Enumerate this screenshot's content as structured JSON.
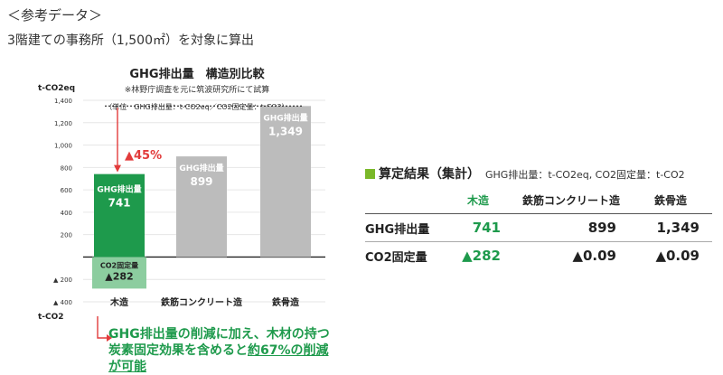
{
  "header": {
    "title": "＜参考データ＞",
    "subtitle": "3階建ての事務所（1,500㎡）を対象に算出"
  },
  "chart_data": {
    "type": "bar",
    "title": "GHG排出量　構造別比較",
    "subtitle": "※林野庁調査を元に筑波研究所にて試算",
    "unit_note": "（単位　GHG排出量：t-CO2eq／CO2固定量：t-CO2）",
    "ylabel_top": "t-CO2eq",
    "ylabel_bottom": "t-CO2",
    "ylim": [
      -400,
      1400
    ],
    "yticks": [
      -400,
      -200,
      0,
      200,
      400,
      600,
      800,
      1000,
      1200,
      1400
    ],
    "ytick_labels": [
      "▲ 400",
      "▲ 200",
      "",
      "200",
      "400",
      "600",
      "800",
      "1,000",
      "1,200",
      "1,400"
    ],
    "categories": [
      "木造",
      "鉄筋コンクリート造",
      "鉄骨造"
    ],
    "series": [
      {
        "name": "GHG排出量",
        "values": [
          741,
          899,
          1349
        ],
        "labels": [
          "741",
          "899",
          "1,349"
        ]
      },
      {
        "name": "CO2固定量",
        "values": [
          -282,
          null,
          null
        ],
        "labels": [
          "▲282",
          "",
          ""
        ]
      }
    ],
    "reduction_label": "▲45%",
    "reference_line": 1349,
    "colors": {
      "wood": "#1e9a4c",
      "other": "#bcbcbc",
      "fixed": "#8ccd9f",
      "arrow": "#e23b3b",
      "reduction": "#e23b3b"
    }
  },
  "note": {
    "part1": "GHG排出量の削減に加え、木材の持つ炭素固定効果を含めると",
    "part2": "約67%の削減が可能"
  },
  "summary": {
    "title": "算定結果（集計）",
    "unit": "GHG排出量：t-CO2eq, CO2固定量：t-CO2",
    "columns": [
      "",
      "木造",
      "鉄筋コンクリート造",
      "鉄骨造"
    ],
    "rows": [
      {
        "label": "GHG排出量",
        "values": [
          "741",
          "899",
          "1,349"
        ]
      },
      {
        "label": "CO2固定量",
        "values": [
          "▲282",
          "▲0.09",
          "▲0.09"
        ]
      }
    ]
  }
}
